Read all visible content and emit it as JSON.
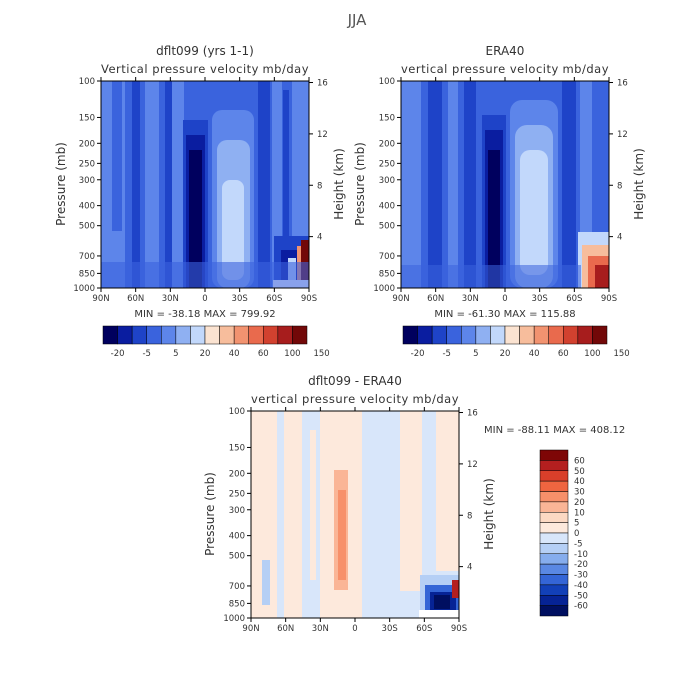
{
  "suptitle": "JJA",
  "chart_data": [
    {
      "type": "heatmap",
      "title": "dflt099 (yrs 1-1)",
      "subtitle_left": "Vertical pressure velocity",
      "subtitle_right": "mb/day",
      "xlabel": "",
      "ylabel": "Pressure (mb)",
      "ylabel_right": "Height (km)",
      "x_ticks": [
        "90N",
        "60N",
        "30N",
        "0",
        "30S",
        "60S",
        "90S"
      ],
      "y_ticks": [
        "100",
        "150",
        "200",
        "250",
        "300",
        "400",
        "500",
        "700",
        "850",
        "1000"
      ],
      "y2_ticks": [
        "16",
        "12",
        "8",
        "4"
      ],
      "ylim": [
        1000,
        100
      ],
      "y_scale": "log",
      "stats": "MIN = -38.18   MAX = 799.92",
      "colorbar_labels": [
        "-20",
        "-5",
        "5",
        "20",
        "40",
        "60",
        "100",
        "150"
      ],
      "colorbar_orientation": "horizontal"
    },
    {
      "type": "heatmap",
      "title": "ERA40",
      "subtitle_left": "vertical pressure velocity",
      "subtitle_right": "mb/day",
      "xlabel": "",
      "ylabel": "Pressure (mb)",
      "ylabel_right": "Height (km)",
      "x_ticks": [
        "90N",
        "60N",
        "30N",
        "0",
        "30S",
        "60S",
        "90S"
      ],
      "y_ticks": [
        "100",
        "150",
        "200",
        "250",
        "300",
        "400",
        "500",
        "700",
        "850",
        "1000"
      ],
      "y2_ticks": [
        "16",
        "12",
        "8",
        "4"
      ],
      "ylim": [
        1000,
        100
      ],
      "y_scale": "log",
      "stats": "MIN = -61.30   MAX = 115.88",
      "colorbar_labels": [
        "-20",
        "-5",
        "5",
        "20",
        "40",
        "60",
        "100",
        "150"
      ],
      "colorbar_orientation": "horizontal"
    },
    {
      "type": "heatmap",
      "title": "dflt099 - ERA40",
      "subtitle_left": "vertical pressure velocity",
      "subtitle_right": "mb/day",
      "xlabel": "",
      "ylabel": "Pressure (mb)",
      "ylabel_right": "Height (km)",
      "x_ticks": [
        "90N",
        "60N",
        "30N",
        "0",
        "30S",
        "60S",
        "90S"
      ],
      "y_ticks": [
        "100",
        "150",
        "200",
        "250",
        "300",
        "400",
        "500",
        "700",
        "850",
        "1000"
      ],
      "y2_ticks": [
        "16",
        "12",
        "8",
        "4"
      ],
      "ylim": [
        1000,
        100
      ],
      "y_scale": "log",
      "stats": "MIN = -88.11   MAX = 408.12",
      "colorbar_labels": [
        "60",
        "50",
        "40",
        "30",
        "20",
        "10",
        "5",
        "0",
        "-5",
        "-10",
        "-20",
        "-30",
        "-40",
        "-50",
        "-60"
      ],
      "colorbar_orientation": "vertical"
    }
  ],
  "palettes": {
    "top": [
      "#00005e",
      "#0a1da0",
      "#1e43c8",
      "#3a63dd",
      "#5d85ea",
      "#8fb0f2",
      "#c2d8fb",
      "#fbe3d1",
      "#f7bd9c",
      "#f29370",
      "#e96a4d",
      "#d2412f",
      "#a71d1d",
      "#720808"
    ],
    "diff": [
      "#7e0606",
      "#b41f1f",
      "#d93f2a",
      "#ef6540",
      "#f7906a",
      "#fab596",
      "#fcd9c3",
      "#fde9dc",
      "#d8e6fa",
      "#b5cff5",
      "#86aded",
      "#5a88e3",
      "#3465d6",
      "#1240b8",
      "#062395",
      "#000f60"
    ]
  }
}
